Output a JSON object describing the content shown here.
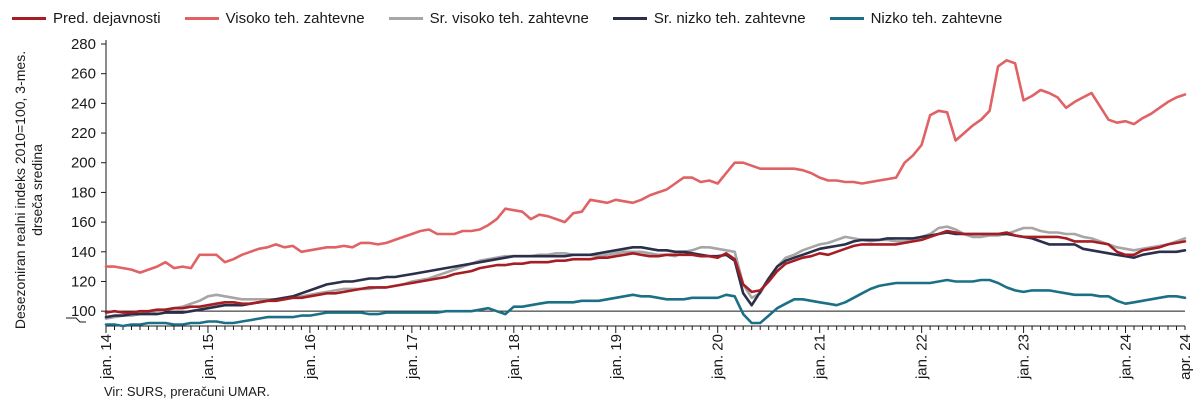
{
  "chart_data": {
    "type": "line",
    "title": "",
    "xlabel": "",
    "ylabel": "Desezoniran realni indeks 2010=100, 3-mes. drseča sredina",
    "ylim": [
      90,
      280
    ],
    "yticks": [
      100,
      120,
      140,
      160,
      180,
      200,
      220,
      240,
      260,
      280
    ],
    "reference_line": 100,
    "grid": false,
    "legend_position": "top",
    "x_start": "2014-01",
    "x_end": "2024-04",
    "xtick_labels": [
      "jan. 14",
      "jan. 15",
      "jan. 16",
      "jan. 17",
      "jan. 18",
      "jan. 19",
      "jan. 20",
      "jan. 21",
      "jan. 22",
      "jan. 23",
      "jan. 24",
      "apr. 24"
    ],
    "series": [
      {
        "name": "Pred. dejavnosti",
        "color": "#a61d24",
        "values": [
          99,
          100,
          99,
          99,
          100,
          100,
          101,
          101,
          102,
          102,
          103,
          103,
          104,
          105,
          106,
          106,
          105,
          105,
          106,
          107,
          107,
          108,
          109,
          109,
          110,
          111,
          112,
          112,
          113,
          114,
          115,
          116,
          116,
          116,
          117,
          118,
          119,
          120,
          121,
          122,
          123,
          125,
          126,
          127,
          129,
          130,
          131,
          131,
          132,
          132,
          133,
          133,
          133,
          134,
          134,
          135,
          135,
          135,
          136,
          136,
          137,
          138,
          139,
          138,
          137,
          137,
          138,
          138,
          138,
          138,
          137,
          137,
          136,
          139,
          135,
          118,
          113,
          114,
          120,
          127,
          132,
          134,
          136,
          137,
          139,
          138,
          140,
          142,
          144,
          145,
          145,
          145,
          145,
          145,
          146,
          147,
          148,
          150,
          152,
          154,
          153,
          152,
          152,
          152,
          152,
          152,
          153,
          151,
          150,
          150,
          150,
          150,
          150,
          149,
          147,
          147,
          147,
          146,
          145,
          140,
          138,
          138,
          141,
          142,
          143,
          145,
          146,
          147
        ]
      },
      {
        "name": "Visoko teh. zahtevne",
        "color": "#e06264",
        "values": [
          130,
          130,
          129,
          128,
          126,
          128,
          130,
          133,
          129,
          130,
          129,
          138,
          138,
          138,
          133,
          135,
          138,
          140,
          142,
          143,
          145,
          143,
          144,
          140,
          141,
          142,
          143,
          143,
          144,
          143,
          146,
          146,
          145,
          146,
          148,
          150,
          152,
          154,
          155,
          152,
          152,
          152,
          154,
          154,
          155,
          158,
          162,
          169,
          168,
          167,
          162,
          165,
          164,
          162,
          160,
          166,
          167,
          175,
          174,
          173,
          175,
          174,
          173,
          175,
          178,
          180,
          182,
          186,
          190,
          190,
          187,
          188,
          186,
          193,
          200,
          200,
          198,
          196,
          196,
          196,
          196,
          196,
          195,
          193,
          190,
          188,
          188,
          187,
          187,
          186,
          187,
          188,
          189,
          190,
          200,
          205,
          212,
          232,
          235,
          234,
          215,
          220,
          225,
          229,
          235,
          265,
          269,
          267,
          242,
          245,
          249,
          247,
          244,
          237,
          241,
          244,
          247,
          238,
          229,
          227,
          228,
          226,
          230,
          233,
          237,
          241,
          244,
          246
        ]
      },
      {
        "name": "Sr. visoko teh. zahtevne",
        "color": "#a6a6a6",
        "values": [
          95,
          96,
          97,
          97,
          98,
          99,
          100,
          101,
          102,
          103,
          105,
          107,
          110,
          111,
          110,
          109,
          108,
          108,
          108,
          108,
          108,
          109,
          109,
          110,
          111,
          112,
          113,
          114,
          115,
          115,
          115,
          115,
          116,
          116,
          117,
          118,
          120,
          121,
          122,
          124,
          126,
          128,
          130,
          132,
          134,
          135,
          136,
          137,
          137,
          137,
          137,
          138,
          138,
          139,
          139,
          138,
          138,
          138,
          137,
          138,
          139,
          140,
          140,
          140,
          139,
          138,
          138,
          137,
          140,
          141,
          143,
          143,
          142,
          141,
          140,
          118,
          109,
          112,
          122,
          130,
          136,
          138,
          141,
          143,
          145,
          146,
          148,
          150,
          149,
          148,
          147,
          148,
          148,
          147,
          147,
          148,
          150,
          152,
          156,
          157,
          155,
          152,
          150,
          150,
          151,
          151,
          152,
          154,
          156,
          156,
          154,
          153,
          153,
          152,
          152,
          150,
          149,
          147,
          145,
          143,
          142,
          141,
          142,
          143,
          144,
          145,
          147,
          149
        ]
      },
      {
        "name": "Sr. nizko teh. zahtevne",
        "color": "#2b2f4a",
        "values": [
          96,
          97,
          97,
          98,
          98,
          98,
          98,
          99,
          99,
          99,
          100,
          101,
          102,
          103,
          104,
          104,
          104,
          105,
          106,
          107,
          108,
          109,
          110,
          112,
          114,
          116,
          118,
          119,
          120,
          120,
          121,
          122,
          122,
          123,
          123,
          124,
          125,
          126,
          127,
          128,
          129,
          130,
          131,
          132,
          133,
          134,
          135,
          136,
          137,
          137,
          137,
          137,
          137,
          137,
          137,
          138,
          138,
          138,
          139,
          140,
          141,
          142,
          143,
          143,
          142,
          141,
          141,
          140,
          140,
          139,
          138,
          137,
          137,
          138,
          134,
          112,
          104,
          113,
          122,
          130,
          134,
          136,
          138,
          140,
          142,
          143,
          144,
          145,
          147,
          148,
          148,
          148,
          149,
          149,
          149,
          149,
          150,
          151,
          152,
          153,
          152,
          152,
          152,
          152,
          152,
          152,
          152,
          151,
          150,
          149,
          147,
          145,
          145,
          145,
          145,
          142,
          141,
          140,
          139,
          138,
          137,
          136,
          138,
          139,
          140,
          140,
          140,
          141
        ]
      },
      {
        "name": "Nizko teh. zahtevne",
        "color": "#1c7086",
        "values": [
          91,
          91,
          90,
          91,
          91,
          92,
          92,
          92,
          91,
          91,
          92,
          92,
          93,
          93,
          92,
          92,
          93,
          94,
          95,
          96,
          96,
          96,
          96,
          97,
          97,
          98,
          99,
          99,
          99,
          99,
          99,
          98,
          98,
          99,
          99,
          99,
          99,
          99,
          99,
          99,
          100,
          100,
          100,
          100,
          101,
          102,
          100,
          98,
          103,
          103,
          104,
          105,
          106,
          106,
          106,
          106,
          107,
          107,
          107,
          108,
          109,
          110,
          111,
          110,
          110,
          109,
          108,
          108,
          108,
          109,
          109,
          109,
          109,
          111,
          110,
          98,
          92,
          92,
          97,
          102,
          105,
          108,
          108,
          107,
          106,
          105,
          104,
          106,
          109,
          112,
          115,
          117,
          118,
          119,
          119,
          119,
          119,
          119,
          120,
          121,
          120,
          120,
          120,
          121,
          121,
          119,
          116,
          114,
          113,
          114,
          114,
          114,
          113,
          112,
          111,
          111,
          111,
          110,
          110,
          107,
          105,
          106,
          107,
          108,
          109,
          110,
          110,
          109
        ]
      }
    ],
    "source": "Vir: SURS, preračuni UMAR."
  }
}
